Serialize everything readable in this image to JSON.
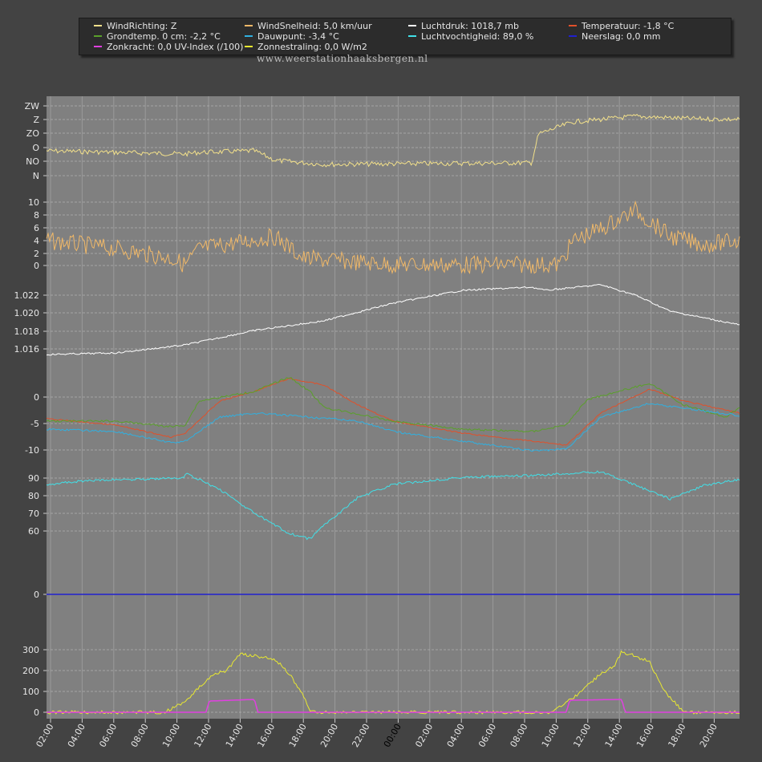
{
  "legend": [
    {
      "label": "WindRichting: Z",
      "color": "#f2e08a"
    },
    {
      "label": "WindSnelheid: 5,0 km/uur",
      "color": "#f0b868"
    },
    {
      "label": "Luchtdruk: 1018,7 mb",
      "color": "#ffffff"
    },
    {
      "label": "Temperatuur: -1,8 °C",
      "color": "#e0502a"
    },
    {
      "label": "Grondtemp. 0 cm: -2,2 °C",
      "color": "#5aa02a"
    },
    {
      "label": "Dauwpunt: -3,4 °C",
      "color": "#30b0e0"
    },
    {
      "label": "Luchtvochtigheid: 89,0 %",
      "color": "#40e0e8"
    },
    {
      "label": "Neerslag: 0,0 mm",
      "color": "#2020d0"
    },
    {
      "label": "Zonkracht: 0,0 UV-Index (/100)",
      "color": "#e040e0"
    },
    {
      "label": "Zonnestraling: 0,0 W/m2",
      "color": "#e8e830"
    }
  ],
  "watermark": "www.weerstationhaaksbergen.nl",
  "x_ticks": [
    "02:00",
    "04:00",
    "06:00",
    "08:00",
    "10:00",
    "12:00",
    "14:00",
    "16:00",
    "18:00",
    "20:00",
    "22:00",
    "00:00",
    "02:00",
    "04:00",
    "06:00",
    "08:00",
    "10:00",
    "12:00",
    "14:00",
    "16:00",
    "18:00",
    "20:00"
  ],
  "chart_data": [
    {
      "type": "line",
      "name": "windrichting",
      "y_ticks": [
        "ZW",
        "Z",
        "ZO",
        "O",
        "NO",
        "N"
      ],
      "series": [
        {
          "name": "WindRichting",
          "color": "#f2e08a"
        }
      ]
    },
    {
      "type": "line",
      "name": "windsnelheid",
      "y_ticks": [
        "10",
        "8",
        "6",
        "4",
        "2",
        "0"
      ],
      "ylim": [
        0,
        10
      ],
      "series": [
        {
          "name": "WindSnelheid",
          "color": "#f0b868"
        }
      ]
    },
    {
      "type": "line",
      "name": "luchtdruk",
      "y_ticks": [
        "1.022",
        "1.020",
        "1.018",
        "1.016"
      ],
      "ylim": [
        1.015,
        1.023
      ],
      "series": [
        {
          "name": "Luchtdruk",
          "color": "#ffffff"
        }
      ]
    },
    {
      "type": "line",
      "name": "temperatuur",
      "y_ticks": [
        "0",
        "-5",
        "-10"
      ],
      "ylim": [
        -11,
        3
      ],
      "series": [
        {
          "name": "Temperatuur",
          "color": "#e0502a"
        },
        {
          "name": "Grondtemp. 0 cm",
          "color": "#5aa02a"
        },
        {
          "name": "Dauwpunt",
          "color": "#30b0e0"
        }
      ]
    },
    {
      "type": "line",
      "name": "luchtvochtigheid",
      "y_ticks": [
        "90",
        "80",
        "70",
        "60"
      ],
      "ylim": [
        50,
        95
      ],
      "series": [
        {
          "name": "Luchtvochtigheid",
          "color": "#40e0e8"
        }
      ]
    },
    {
      "type": "line",
      "name": "neerslag",
      "y_ticks": [
        "0"
      ],
      "series": [
        {
          "name": "Neerslag",
          "color": "#2020d0"
        }
      ]
    },
    {
      "type": "line",
      "name": "straling",
      "y_ticks": [
        "300",
        "200",
        "100",
        "0"
      ],
      "ylim": [
        0,
        320
      ],
      "series": [
        {
          "name": "Zonnestraling",
          "color": "#e8e830"
        },
        {
          "name": "Zonkracht",
          "color": "#e040e0"
        }
      ]
    }
  ]
}
